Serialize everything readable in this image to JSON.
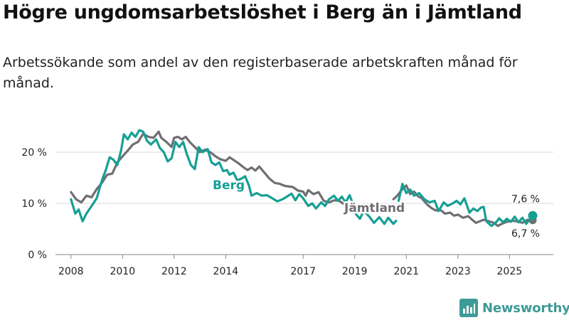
{
  "title": "Högre ungdomsarbetslöshet i Berg än i Jämtland",
  "subtitle": "Arbetssökande som andel av den registerbaserade arbetskraften månad för månad.",
  "brand": {
    "name": "Newsworthy"
  },
  "colors": {
    "berg": "#159f94",
    "jamtland": "#6f6f73",
    "grid": "#d9d9d9",
    "text": "#222222"
  },
  "chart_data": {
    "type": "line",
    "title": "Högre ungdomsarbetslöshet i Berg än i Jämtland",
    "xlabel": "",
    "ylabel": "",
    "xlim": [
      2007.4,
      2026.7
    ],
    "ylim": [
      0,
      25
    ],
    "x_ticks": [
      2008,
      2010,
      2012,
      2014,
      2017,
      2019,
      2021,
      2023,
      2025
    ],
    "x_tick_labels": [
      "2008",
      "2010",
      "2012",
      "2014",
      "2017",
      "2019",
      "2021",
      "2023",
      "2025"
    ],
    "y_ticks": [
      0,
      10,
      20
    ],
    "y_tick_labels": [
      "0 %",
      "10 %",
      "20 %"
    ],
    "series": [
      {
        "name": "Berg",
        "label": "Berg",
        "end_label": "7,6 %",
        "segments": [
          [
            [
              2008.0,
              10.8
            ],
            [
              2008.17,
              8.0
            ],
            [
              2008.3,
              8.8
            ],
            [
              2008.45,
              6.5
            ],
            [
              2008.6,
              8.0
            ],
            [
              2008.8,
              9.5
            ],
            [
              2009.0,
              11.0
            ],
            [
              2009.2,
              14.5
            ],
            [
              2009.35,
              16.5
            ],
            [
              2009.5,
              19.0
            ],
            [
              2009.65,
              18.5
            ],
            [
              2009.8,
              17.5
            ],
            [
              2009.95,
              20.5
            ],
            [
              2010.05,
              23.5
            ],
            [
              2010.2,
              22.5
            ],
            [
              2010.35,
              23.8
            ],
            [
              2010.5,
              23.0
            ],
            [
              2010.65,
              24.3
            ],
            [
              2010.8,
              24.0
            ],
            [
              2010.95,
              22.2
            ],
            [
              2011.1,
              21.5
            ],
            [
              2011.3,
              22.5
            ],
            [
              2011.45,
              20.8
            ],
            [
              2011.6,
              20.0
            ],
            [
              2011.75,
              18.2
            ],
            [
              2011.9,
              18.8
            ],
            [
              2012.05,
              22.0
            ],
            [
              2012.2,
              21.0
            ],
            [
              2012.35,
              22.0
            ],
            [
              2012.5,
              19.5
            ],
            [
              2012.65,
              17.5
            ],
            [
              2012.8,
              16.7
            ],
            [
              2012.95,
              21.0
            ],
            [
              2013.1,
              20.0
            ],
            [
              2013.3,
              20.6
            ],
            [
              2013.45,
              18.0
            ],
            [
              2013.6,
              17.5
            ],
            [
              2013.75,
              18.0
            ],
            [
              2013.9,
              16.3
            ],
            [
              2014.05,
              16.5
            ],
            [
              2014.15,
              15.6
            ],
            [
              2014.3,
              16.0
            ],
            [
              2014.45,
              14.5
            ],
            [
              2014.6,
              14.8
            ],
            [
              2014.75,
              15.3
            ],
            [
              2014.9,
              13.5
            ],
            [
              2015.0,
              11.5
            ],
            [
              2015.2,
              12.0
            ],
            [
              2015.4,
              11.5
            ],
            [
              2015.6,
              11.6
            ],
            [
              2015.8,
              11.0
            ],
            [
              2016.0,
              10.4
            ],
            [
              2016.2,
              10.8
            ],
            [
              2016.4,
              11.4
            ],
            [
              2016.55,
              11.9
            ],
            [
              2016.7,
              10.6
            ],
            [
              2016.85,
              11.8
            ],
            [
              2017.0,
              11.0
            ],
            [
              2017.2,
              9.5
            ],
            [
              2017.35,
              10.0
            ],
            [
              2017.5,
              9.0
            ],
            [
              2017.7,
              10.2
            ],
            [
              2017.85,
              9.5
            ],
            [
              2018.0,
              10.8
            ],
            [
              2018.2,
              11.5
            ],
            [
              2018.35,
              10.5
            ],
            [
              2018.5,
              11.3
            ],
            [
              2018.65,
              10.2
            ],
            [
              2018.8,
              11.6
            ],
            [
              2018.9,
              10.3
            ]
          ],
          [
            [
              2019.0,
              8.2
            ],
            [
              2019.2,
              7.0
            ],
            [
              2019.35,
              8.5
            ],
            [
              2019.55,
              7.5
            ],
            [
              2019.75,
              6.2
            ],
            [
              2019.95,
              7.3
            ],
            [
              2020.15,
              6.0
            ],
            [
              2020.3,
              7.2
            ],
            [
              2020.5,
              6.0
            ],
            [
              2020.6,
              6.6
            ]
          ],
          [
            [
              2020.7,
              10.5
            ],
            [
              2020.85,
              13.8
            ],
            [
              2021.0,
              12.0
            ],
            [
              2021.15,
              12.7
            ],
            [
              2021.3,
              11.5
            ],
            [
              2021.5,
              12.0
            ],
            [
              2021.7,
              10.8
            ],
            [
              2021.9,
              10.2
            ],
            [
              2022.1,
              10.5
            ],
            [
              2022.25,
              8.5
            ],
            [
              2022.45,
              10.2
            ],
            [
              2022.6,
              9.5
            ],
            [
              2022.8,
              10.0
            ],
            [
              2022.95,
              10.5
            ],
            [
              2023.1,
              9.8
            ],
            [
              2023.25,
              11.0
            ],
            [
              2023.45,
              8.2
            ],
            [
              2023.6,
              9.0
            ],
            [
              2023.75,
              8.5
            ],
            [
              2023.9,
              9.2
            ],
            [
              2024.0,
              9.3
            ],
            [
              2024.1,
              6.5
            ],
            [
              2024.3,
              5.6
            ],
            [
              2024.5,
              6.4
            ],
            [
              2024.6,
              7.1
            ],
            [
              2024.75,
              6.3
            ],
            [
              2024.9,
              7.0
            ],
            [
              2025.05,
              6.4
            ],
            [
              2025.2,
              7.4
            ],
            [
              2025.35,
              6.3
            ],
            [
              2025.5,
              7.2
            ],
            [
              2025.65,
              6.0
            ],
            [
              2025.8,
              7.0
            ],
            [
              2025.9,
              7.6
            ]
          ]
        ]
      },
      {
        "name": "Jämtland",
        "label": "Jämtland",
        "end_label": "6,7 %",
        "segments": [
          [
            [
              2008.0,
              12.2
            ],
            [
              2008.2,
              10.8
            ],
            [
              2008.4,
              10.2
            ],
            [
              2008.6,
              11.5
            ],
            [
              2008.8,
              11.2
            ],
            [
              2009.0,
              12.8
            ],
            [
              2009.2,
              14.0
            ],
            [
              2009.4,
              15.6
            ],
            [
              2009.6,
              15.8
            ],
            [
              2009.8,
              18.0
            ],
            [
              2010.0,
              19.2
            ],
            [
              2010.2,
              20.3
            ],
            [
              2010.4,
              21.5
            ],
            [
              2010.6,
              22.0
            ],
            [
              2010.8,
              23.6
            ],
            [
              2011.0,
              23.0
            ],
            [
              2011.2,
              22.8
            ],
            [
              2011.4,
              24.0
            ],
            [
              2011.5,
              22.8
            ],
            [
              2011.7,
              22.0
            ],
            [
              2011.9,
              21.0
            ],
            [
              2012.0,
              22.8
            ],
            [
              2012.15,
              23.0
            ],
            [
              2012.3,
              22.5
            ],
            [
              2012.45,
              23.0
            ],
            [
              2012.6,
              22.0
            ],
            [
              2012.8,
              21.0
            ],
            [
              2013.0,
              20.0
            ],
            [
              2013.2,
              20.5
            ],
            [
              2013.4,
              20.0
            ],
            [
              2013.6,
              19.2
            ],
            [
              2013.8,
              18.6
            ],
            [
              2014.0,
              18.3
            ],
            [
              2014.15,
              19.0
            ],
            [
              2014.3,
              18.5
            ],
            [
              2014.5,
              17.8
            ],
            [
              2014.7,
              17.0
            ],
            [
              2014.85,
              16.5
            ],
            [
              2015.0,
              17.0
            ],
            [
              2015.15,
              16.4
            ],
            [
              2015.3,
              17.2
            ],
            [
              2015.5,
              16.0
            ],
            [
              2015.7,
              14.8
            ],
            [
              2015.9,
              14.0
            ],
            [
              2016.1,
              13.8
            ],
            [
              2016.3,
              13.4
            ],
            [
              2016.6,
              13.2
            ],
            [
              2016.8,
              12.5
            ],
            [
              2017.0,
              12.3
            ],
            [
              2017.1,
              11.5
            ],
            [
              2017.2,
              12.6
            ],
            [
              2017.4,
              11.8
            ],
            [
              2017.6,
              12.2
            ],
            [
              2017.8,
              10.5
            ],
            [
              2018.0,
              10.2
            ],
            [
              2018.2,
              10.6
            ],
            [
              2018.4,
              10.5
            ],
            [
              2018.6,
              9.8
            ],
            [
              2018.75,
              9.2
            ]
          ],
          [
            [
              2020.5,
              10.8
            ],
            [
              2020.65,
              11.5
            ],
            [
              2020.8,
              12.5
            ],
            [
              2021.0,
              13.5
            ],
            [
              2021.15,
              11.8
            ],
            [
              2021.3,
              12.3
            ],
            [
              2021.45,
              11.4
            ],
            [
              2021.6,
              11.0
            ],
            [
              2021.8,
              9.8
            ],
            [
              2022.0,
              9.0
            ],
            [
              2022.15,
              8.6
            ],
            [
              2022.3,
              8.8
            ],
            [
              2022.5,
              8.0
            ],
            [
              2022.7,
              8.2
            ],
            [
              2022.85,
              7.6
            ],
            [
              2023.0,
              7.8
            ],
            [
              2023.2,
              7.2
            ],
            [
              2023.4,
              7.5
            ],
            [
              2023.55,
              6.8
            ],
            [
              2023.7,
              6.2
            ],
            [
              2023.85,
              6.5
            ],
            [
              2024.0,
              6.8
            ],
            [
              2024.2,
              6.5
            ],
            [
              2024.4,
              6.2
            ],
            [
              2024.55,
              5.6
            ],
            [
              2024.7,
              6.0
            ],
            [
              2024.9,
              6.4
            ],
            [
              2025.1,
              6.6
            ],
            [
              2025.3,
              6.5
            ],
            [
              2025.5,
              6.2
            ],
            [
              2025.7,
              6.8
            ],
            [
              2025.9,
              6.7
            ]
          ]
        ]
      }
    ]
  }
}
